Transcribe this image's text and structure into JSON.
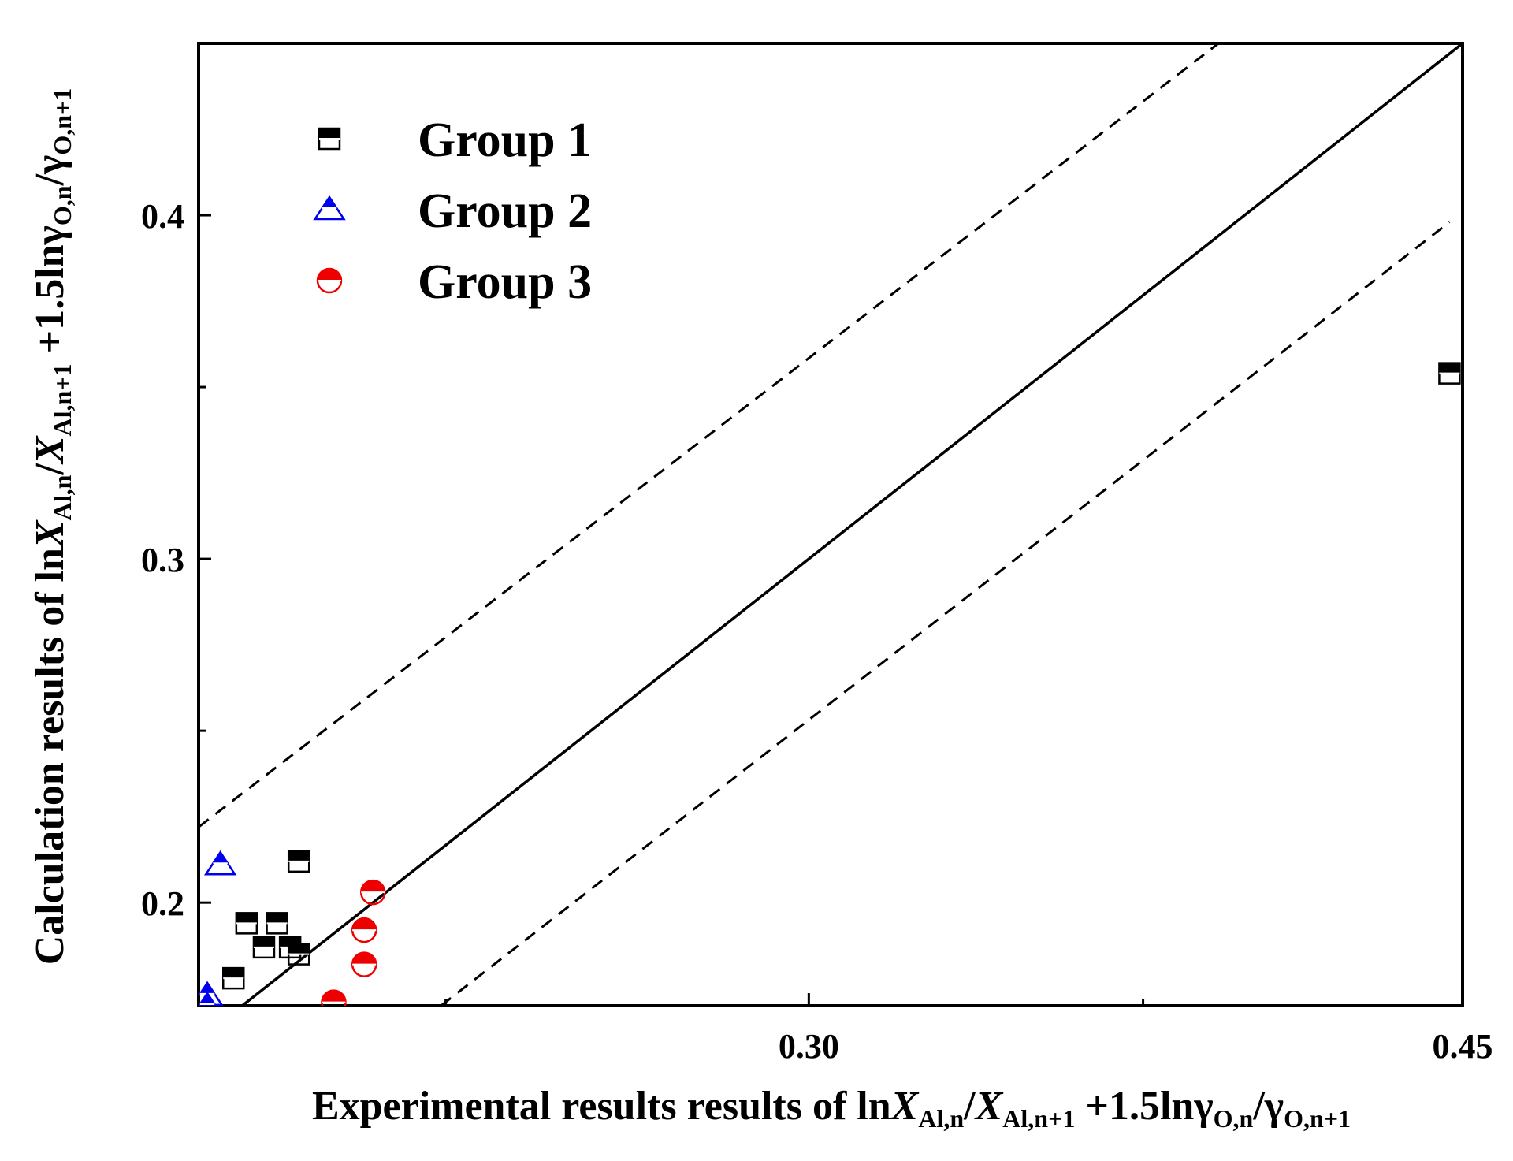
{
  "chart_data": {
    "type": "scatter",
    "title": "",
    "xlabel": {
      "prefix": "Experimental results results of ln",
      "parts": [
        {
          "t": "X",
          "i": true
        },
        {
          "t": "Al,n",
          "s": true
        },
        {
          "t": "/"
        },
        {
          "t": "X",
          "i": true
        },
        {
          "t": "Al,n+1",
          "s": true
        },
        {
          "t": " +1.5lnγ"
        },
        {
          "t": "O,n",
          "s": true
        },
        {
          "t": "/γ"
        },
        {
          "t": "O,n+1",
          "s": true
        }
      ]
    },
    "ylabel": {
      "prefix": "Calculation results of ln",
      "parts": [
        {
          "t": "X",
          "i": true
        },
        {
          "t": "Al,n",
          "s": true
        },
        {
          "t": "/"
        },
        {
          "t": "X",
          "i": true
        },
        {
          "t": "Al,n+1",
          "s": true
        },
        {
          "t": " +1.5lnγ"
        },
        {
          "t": "O,n",
          "s": true
        },
        {
          "t": "/γ"
        },
        {
          "t": "O,n+1",
          "s": true
        }
      ]
    },
    "xlim": [
      0.16,
      0.45
    ],
    "ylim": [
      0.17,
      0.45
    ],
    "x_ticks": [
      {
        "value": 0.3,
        "label": "0.30"
      },
      {
        "value": 0.45,
        "label": "0.45"
      }
    ],
    "x_minor_ticks": [
      0.2167,
      0.3767
    ],
    "y_ticks": [
      {
        "value": 0.2,
        "label": "0.2"
      },
      {
        "value": 0.3,
        "label": "0.3"
      },
      {
        "value": 0.4,
        "label": "0.4"
      }
    ],
    "y_minor_ticks": [
      0.25,
      0.35
    ],
    "grid": false,
    "legend_position": "top-left",
    "reference_lines": [
      {
        "name": "y = x",
        "style": "solid",
        "points": [
          [
            0.16,
            0.16
          ],
          [
            0.45,
            0.45
          ]
        ]
      },
      {
        "name": "upper bound",
        "style": "dashed",
        "points": [
          [
            0.16,
            0.222
          ],
          [
            0.394,
            0.45
          ]
        ]
      },
      {
        "name": "lower bound",
        "style": "dashed",
        "points": [
          [
            0.2156,
            0.17
          ],
          [
            0.447,
            0.398
          ]
        ]
      }
    ],
    "series": [
      {
        "name": "Group 1",
        "marker": "square-half",
        "color": "#000000",
        "points": [
          [
            0.447,
            0.354
          ],
          [
            0.183,
            0.212
          ],
          [
            0.178,
            0.194
          ],
          [
            0.171,
            0.194
          ],
          [
            0.181,
            0.187
          ],
          [
            0.183,
            0.185
          ],
          [
            0.175,
            0.187
          ],
          [
            0.168,
            0.178
          ]
        ]
      },
      {
        "name": "Group 2",
        "marker": "triangle-half",
        "color": "#0000ee",
        "points": [
          [
            0.165,
            0.211
          ],
          [
            0.162,
            0.173
          ],
          [
            0.162,
            0.17
          ]
        ]
      },
      {
        "name": "Group 3",
        "marker": "circle-half",
        "color": "#ee0000",
        "points": [
          [
            0.2,
            0.203
          ],
          [
            0.198,
            0.192
          ],
          [
            0.198,
            0.182
          ],
          [
            0.191,
            0.171
          ]
        ]
      }
    ]
  }
}
